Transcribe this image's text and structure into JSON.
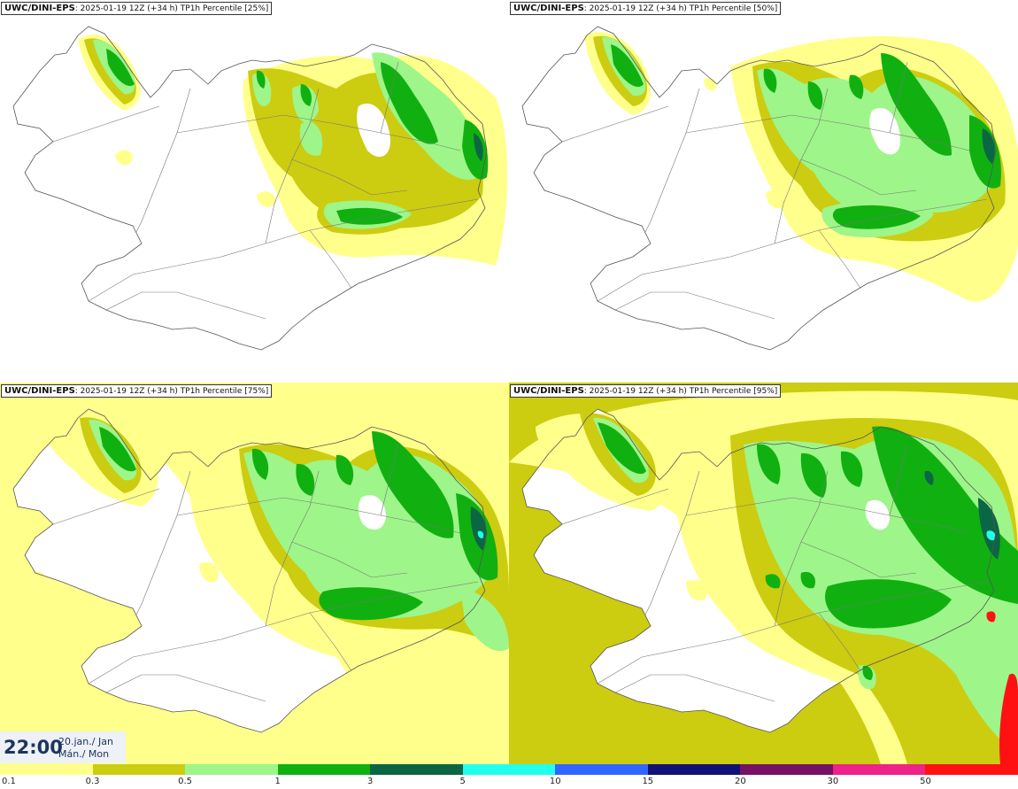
{
  "panels": [
    {
      "model": "UWC/DINI-EPS",
      "run": ": 2025-01-19 12Z (+34 h)",
      "param": "TP1h Percentile [25%]",
      "level": 1
    },
    {
      "model": "UWC/DINI-EPS",
      "run": ": 2025-01-19 12Z (+34 h)",
      "param": "TP1h Percentile [50%]",
      "level": 2
    },
    {
      "model": "UWC/DINI-EPS",
      "run": ": 2025-01-19 12Z (+34 h)",
      "param": "TP1h Percentile [75%]",
      "level": 3
    },
    {
      "model": "UWC/DINI-EPS",
      "run": ": 2025-01-19 12Z (+34 h)",
      "param": "TP1h Percentile [95%]",
      "level": 4
    }
  ],
  "valid_time": {
    "time": "22:00",
    "date": "20.jan./ Jan",
    "weekday": "Mán./ Mon"
  },
  "legend": {
    "ticks": [
      "0.1",
      "0.3",
      "0.5",
      "1",
      "3",
      "5",
      "10",
      "15",
      "20",
      "30",
      "50"
    ],
    "colors": [
      "#ffff8c",
      "#cccc11",
      "#9ef589",
      "#11b011",
      "#0b6644",
      "#22ffee",
      "#3366ff",
      "#111177",
      "#771166",
      "#ee2288",
      "#ff1111"
    ]
  }
}
